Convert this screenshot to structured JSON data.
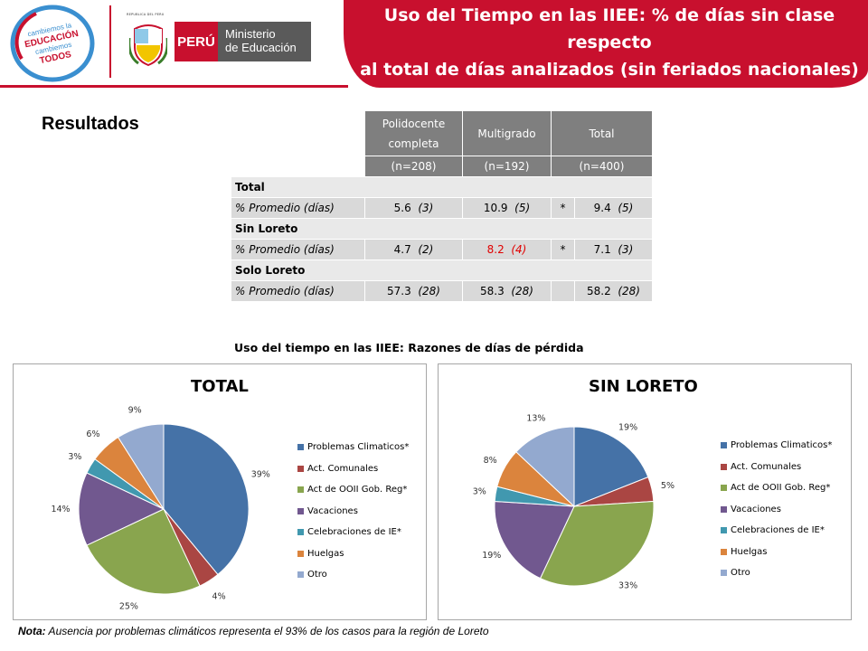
{
  "header": {
    "logo_text": "cambiemos la EDUCACIÓN cambiemos TODOS",
    "shield_caption": "REPUBLICA DEL PERU",
    "peru_label": "PERÚ",
    "ministry_line1": "Ministerio",
    "ministry_line2": "de Educación",
    "title_line1": "Uso del Tiempo en las IIEE: % de días sin clase respecto",
    "title_line2": "al total de días analizados  (sin feriados nacionales)",
    "accent_color": "#c8102e"
  },
  "results_label": "Resultados",
  "table": {
    "columns": [
      "Polidocente completa",
      "Multigrado",
      "Total"
    ],
    "n_values": [
      "(n=208)",
      "(n=192)",
      "(n=400)"
    ],
    "sections": [
      {
        "title": "Total",
        "row_label": "% Promedio (días)",
        "values": [
          "5.6",
          "10.9",
          "9.4"
        ],
        "days": [
          "(3)",
          "(5)",
          "(5)"
        ],
        "star": "*",
        "multigrado_red": false
      },
      {
        "title": "Sin Loreto",
        "row_label": "% Promedio (días)",
        "values": [
          "4.7",
          "8.2",
          "7.1"
        ],
        "days": [
          "(2)",
          "(4)",
          "(3)"
        ],
        "star": "*",
        "multigrado_red": true
      },
      {
        "title": "Solo Loreto",
        "row_label": "%   Promedio (días)",
        "values": [
          "57.3",
          "58.3",
          "58.2"
        ],
        "days": [
          "(28)",
          "(28)",
          "(28)"
        ],
        "star": "",
        "multigrado_red": false
      }
    ]
  },
  "charts_subtitle": "Uso del tiempo en las IIEE: Razones de días de pérdida",
  "chart_data": [
    {
      "type": "pie",
      "title": "TOTAL",
      "categories": [
        "Problemas Climaticos*",
        "Act. Comunales",
        "Act de OOII Gob. Reg*",
        "Vacaciones",
        "Celebraciones de IE*",
        "Huelgas",
        "Otro"
      ],
      "values": [
        39,
        4,
        25,
        14,
        3,
        6,
        9
      ],
      "labels": [
        "39%",
        "4%",
        "25%",
        "14%",
        "3%",
        "6%",
        "9%"
      ],
      "colors": [
        "#4572a7",
        "#aa4643",
        "#89a54e",
        "#71588f",
        "#4198af",
        "#db843d",
        "#93a9cf"
      ],
      "legend": "right"
    },
    {
      "type": "pie",
      "title": "SIN LORETO",
      "categories": [
        "Problemas Climaticos*",
        "Act. Comunales",
        "Act de OOII Gob. Reg*",
        "Vacaciones",
        "Celebraciones de IE*",
        "Huelgas",
        "Otro"
      ],
      "values": [
        19,
        5,
        33,
        19,
        3,
        8,
        13
      ],
      "labels": [
        "19%",
        "5%",
        "33%",
        "19%",
        "3%",
        "8%",
        "13%"
      ],
      "colors": [
        "#4572a7",
        "#aa4643",
        "#89a54e",
        "#71588f",
        "#4198af",
        "#db843d",
        "#93a9cf"
      ],
      "legend": "right"
    }
  ],
  "note": {
    "label": "Nota:",
    "text": " Ausencia por problemas climáticos representa el 93% de los casos para la región de Loreto"
  }
}
